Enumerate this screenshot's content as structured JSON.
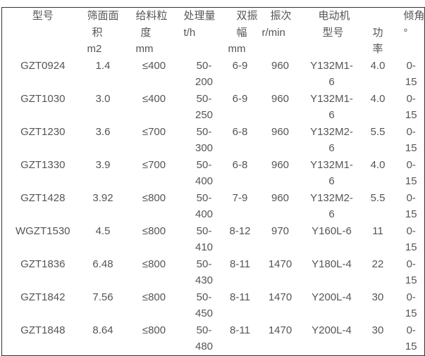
{
  "table": {
    "headers": {
      "model": [
        "型号"
      ],
      "screen_area": [
        "筛面面",
        "积",
        "m2"
      ],
      "feed_size": [
        "给料粒",
        "度",
        "mm"
      ],
      "capacity": [
        "处理量",
        "t/h"
      ],
      "double_amplitude": [
        "双振",
        "幅",
        "mm"
      ],
      "frequency": [
        "振次",
        "r/min"
      ],
      "motor": "电动机",
      "motor_model": [
        "型号"
      ],
      "motor_power": [
        "功",
        "率"
      ],
      "inclination": [
        "倾角",
        "°"
      ]
    },
    "rows": [
      [
        "GZT0924",
        "1.4",
        "≤400",
        "50-200",
        "6-9",
        "960",
        "Y132M1-6",
        "4.0",
        "0-15"
      ],
      [
        "GZT1030",
        "3.0",
        "≤400",
        "50-250",
        "6-9",
        "960",
        "Y132M1-6",
        "4.0",
        "0-15"
      ],
      [
        "GZT1230",
        "3.6",
        "≤700",
        "50-300",
        "6-8",
        "960",
        "Y132M2-6",
        "5.5",
        "0-15"
      ],
      [
        "GZT1330",
        "3.9",
        "≤700",
        "50-400",
        "6-8",
        "960",
        "Y132M1-6",
        "4.0",
        "0-15"
      ],
      [
        "GZT1428",
        "3.92",
        "≤800",
        "50-400",
        "7-9",
        "960",
        "Y132M2-6",
        "5.5",
        "0-15"
      ],
      [
        "WGZT1530",
        "4.5",
        "≤800",
        "50-410",
        "8-12",
        "970",
        "Y160L-6",
        "11",
        "0-15"
      ],
      [
        "GZT1836",
        "6.48",
        "≤800",
        "50-430",
        "8-11",
        "1470",
        "Y180L-4",
        "22",
        "0-15"
      ],
      [
        "GZT1842",
        "7.56",
        "≤800",
        "50-450",
        "8-11",
        "1470",
        "Y200L-4",
        "30",
        "0-15"
      ],
      [
        "GZT1848",
        "8.64",
        "≤800",
        "50-480",
        "8-11",
        "1470",
        "Y200L-4",
        "30",
        "0-15"
      ]
    ]
  }
}
